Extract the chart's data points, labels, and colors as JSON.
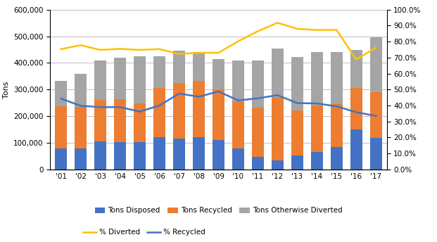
{
  "years": [
    "'01",
    "'02",
    "'03",
    "'04",
    "'05",
    "'06",
    "'07",
    "'08",
    "'09",
    "'10",
    "'11",
    "'12",
    "'13",
    "'14",
    "'15",
    "'16",
    "'17"
  ],
  "tons_disposed": [
    80000,
    80000,
    105000,
    102000,
    102000,
    120000,
    115000,
    122000,
    110000,
    80000,
    48000,
    35000,
    52000,
    65000,
    85000,
    150000,
    118000
  ],
  "tons_recycled": [
    158000,
    155000,
    155000,
    163000,
    147000,
    185000,
    210000,
    210000,
    190000,
    175000,
    185000,
    235000,
    170000,
    175000,
    160000,
    155000,
    172000
  ],
  "tons_otherwise_diverted": [
    95000,
    125000,
    150000,
    155000,
    175000,
    120000,
    120000,
    108000,
    115000,
    155000,
    175000,
    185000,
    200000,
    200000,
    195000,
    145000,
    205000
  ],
  "pct_diverted": [
    0.753,
    0.778,
    0.748,
    0.755,
    0.748,
    0.753,
    0.723,
    0.73,
    0.73,
    0.802,
    0.865,
    0.918,
    0.88,
    0.873,
    0.873,
    0.688,
    0.762
  ],
  "pct_recycled": [
    0.443,
    0.398,
    0.39,
    0.39,
    0.362,
    0.4,
    0.475,
    0.455,
    0.488,
    0.432,
    0.445,
    0.465,
    0.415,
    0.413,
    0.395,
    0.358,
    0.335
  ],
  "bar_colors": [
    "#4472C4",
    "#ED7D31",
    "#A5A5A5"
  ],
  "line_color_diverted": "#FFC000",
  "line_color_recycled": "#4472C4",
  "ylabel_left": "Tons",
  "ylim_left": [
    0,
    600000
  ],
  "ylim_right": [
    0.0,
    1.0
  ],
  "yticks_left": [
    0,
    100000,
    200000,
    300000,
    400000,
    500000,
    600000
  ],
  "yticks_right": [
    0.0,
    0.1,
    0.2,
    0.3,
    0.4,
    0.5,
    0.6,
    0.7,
    0.8,
    0.9,
    1.0
  ],
  "legend_labels": [
    "Tons Disposed",
    "Tons Recycled",
    "Tons Otherwise Diverted",
    "% Diverted",
    "% Recycled"
  ],
  "background_color": "#FFFFFF",
  "grid_color": "#C0C0C0"
}
